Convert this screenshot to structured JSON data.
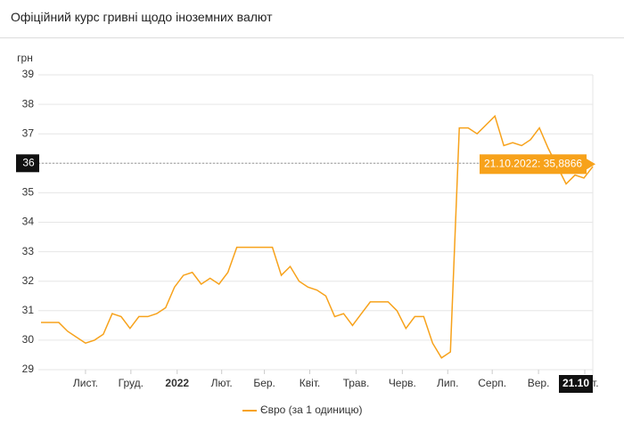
{
  "header": {
    "title": "Офіційний курс гривні щодо іноземних валют"
  },
  "chart_data": {
    "type": "line",
    "y_label": "грн",
    "series": [
      {
        "name": "Євро (за 1 одиницю)",
        "color": "#f7a21b",
        "values": [
          30.6,
          30.6,
          30.6,
          30.3,
          30.1,
          29.9,
          30.0,
          30.2,
          30.9,
          30.8,
          30.4,
          30.8,
          30.8,
          30.9,
          31.1,
          31.8,
          32.2,
          32.3,
          31.9,
          32.1,
          31.9,
          32.3,
          33.15,
          33.15,
          33.15,
          33.15,
          33.15,
          32.2,
          32.5,
          32.0,
          31.8,
          31.7,
          31.5,
          30.8,
          30.9,
          30.5,
          30.9,
          31.3,
          31.3,
          31.3,
          31.0,
          30.4,
          30.8,
          30.8,
          29.9,
          29.4,
          29.6,
          37.2,
          37.2,
          37.0,
          37.3,
          37.6,
          36.6,
          36.7,
          36.6,
          36.8,
          37.2,
          36.5,
          35.9,
          35.3,
          35.6,
          35.5,
          35.8866
        ]
      }
    ],
    "xlim": [
      0,
      62
    ],
    "xticks": [
      {
        "value": 5,
        "label": "Лист."
      },
      {
        "value": 10.1,
        "label": "Груд."
      },
      {
        "value": 15.3,
        "label": "2022"
      },
      {
        "value": 20.3,
        "label": "Лют."
      },
      {
        "value": 25.1,
        "label": "Бер."
      },
      {
        "value": 30.2,
        "label": "Квіт."
      },
      {
        "value": 35.4,
        "label": "Трав."
      },
      {
        "value": 40.6,
        "label": "Черв."
      },
      {
        "value": 45.7,
        "label": "Лип."
      },
      {
        "value": 50.7,
        "label": "Серп."
      },
      {
        "value": 55.9,
        "label": "Вер."
      },
      {
        "value": 61.1,
        "label": "Жовт."
      }
    ],
    "ylim": [
      29,
      39
    ],
    "yticks": [
      29,
      30,
      31,
      32,
      33,
      34,
      35,
      36,
      37,
      38,
      39
    ],
    "grid": true,
    "crosshair": {
      "x": 62,
      "x_label": "21.10",
      "y": 36,
      "tooltip": "21.10.2022: 35,8866"
    }
  }
}
